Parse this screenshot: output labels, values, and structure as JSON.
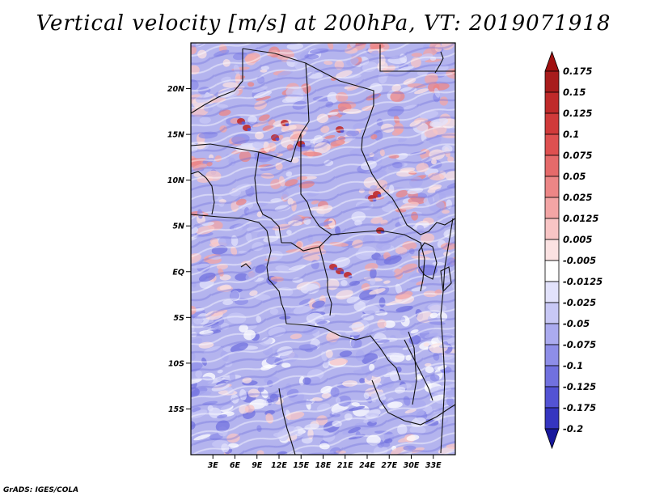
{
  "title": "Vertical velocity [m/s] at 200hPa, VT: 2019071918",
  "footer": "GrADS: IGES/COLA",
  "map": {
    "variable": "Vertical velocity",
    "units": "m/s",
    "level": "200hPa",
    "valid_time": "2019071918",
    "lon_range": [
      0,
      36
    ],
    "lat_range": [
      -20,
      25
    ],
    "lat_ticks": [
      {
        "value": 20,
        "label": "20N"
      },
      {
        "value": 15,
        "label": "15N"
      },
      {
        "value": 10,
        "label": "10N"
      },
      {
        "value": 5,
        "label": "5N"
      },
      {
        "value": 0,
        "label": "EQ"
      },
      {
        "value": -5,
        "label": "5S"
      },
      {
        "value": -10,
        "label": "10S"
      },
      {
        "value": -15,
        "label": "15S"
      }
    ],
    "lon_ticks": [
      {
        "value": 3,
        "label": "3E"
      },
      {
        "value": 6,
        "label": "6E"
      },
      {
        "value": 9,
        "label": "9E"
      },
      {
        "value": 12,
        "label": "12E"
      },
      {
        "value": 15,
        "label": "15E"
      },
      {
        "value": 18,
        "label": "18E"
      },
      {
        "value": 21,
        "label": "21E"
      },
      {
        "value": 24,
        "label": "24E"
      },
      {
        "value": 27,
        "label": "27E"
      },
      {
        "value": 30,
        "label": "30E"
      },
      {
        "value": 33,
        "label": "33E"
      }
    ]
  },
  "colorbar": {
    "levels": [
      {
        "label": "0.175",
        "color": "#a81c1c"
      },
      {
        "label": "0.15",
        "color": "#bf2a2a"
      },
      {
        "label": "0.125",
        "color": "#d03a3a"
      },
      {
        "label": "0.1",
        "color": "#de5050"
      },
      {
        "label": "0.075",
        "color": "#e56a6a"
      },
      {
        "label": "0.05",
        "color": "#ec8686"
      },
      {
        "label": "0.025",
        "color": "#f3a5a5"
      },
      {
        "label": "0.0125",
        "color": "#f8c5c5"
      },
      {
        "label": "0.005",
        "color": "#fbe2e2"
      },
      {
        "label": "-0.005",
        "color": "#ffffff"
      },
      {
        "label": "-0.0125",
        "color": "#e2e2fb"
      },
      {
        "label": "-0.025",
        "color": "#c8c8f5"
      },
      {
        "label": "-0.05",
        "color": "#ababef"
      },
      {
        "label": "-0.075",
        "color": "#8e8ee8"
      },
      {
        "label": "-0.1",
        "color": "#7171df"
      },
      {
        "label": "-0.125",
        "color": "#5353d4"
      },
      {
        "label": "-0.175",
        "color": "#3535c0"
      },
      {
        "label": "-0.2",
        "color": "#2020a6"
      }
    ],
    "top_color": "#a01010",
    "bottom_color": "#18189c"
  }
}
